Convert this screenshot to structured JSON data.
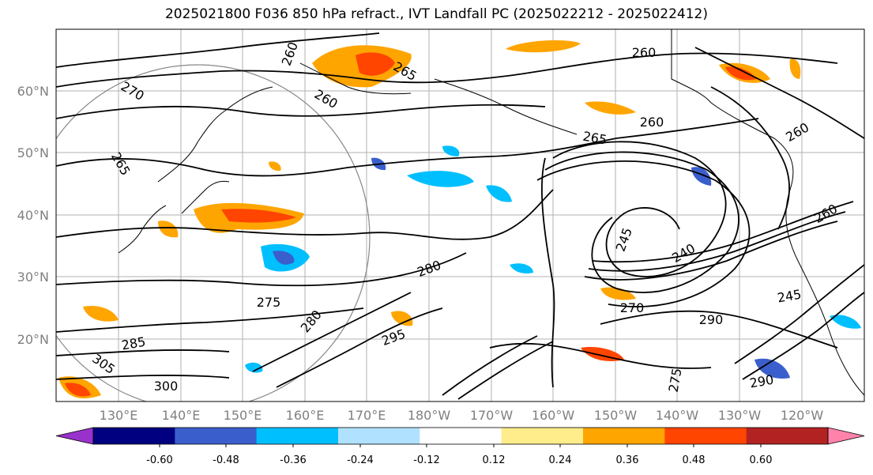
{
  "title": "2025021800 F036 850 hPa refract., IVT Landfall PC (2025022212 - 2025022412)",
  "latitude_labels": [
    "60°N",
    "50°N",
    "40°N",
    "30°N",
    "20°N"
  ],
  "longitude_labels": [
    "130°E",
    "140°E",
    "150°E",
    "160°E",
    "170°E",
    "180°W",
    "170°W",
    "160°W",
    "150°W",
    "140°W",
    "130°W",
    "120°W"
  ],
  "colorbar": {
    "colors": [
      "#9932cc",
      "#000080",
      "#3a5fcd",
      "#00bfff",
      "#b0e2ff",
      "#ffffff",
      "#ffec8b",
      "#ffa500",
      "#ff4500",
      "#b22222",
      "#ff82ab"
    ],
    "tick_labels": [
      "-0.60",
      "-0.48",
      "-0.36",
      "-0.24",
      "-0.12",
      "0.12",
      "0.24",
      "0.36",
      "0.48",
      "0.60"
    ]
  },
  "contour_labels": [
    "260",
    "265",
    "270",
    "260",
    "265",
    "260",
    "260",
    "245",
    "240",
    "265",
    "280",
    "275",
    "285",
    "305",
    "300",
    "290",
    "295",
    "280",
    "260",
    "290",
    "275",
    "270",
    "245",
    "260"
  ]
}
